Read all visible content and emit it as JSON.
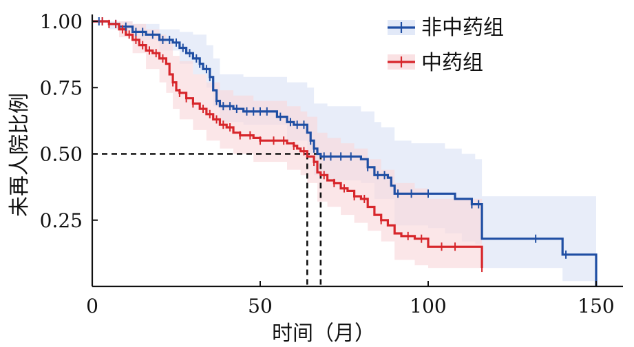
{
  "chart_data": {
    "type": "line",
    "title": "",
    "xlabel": "时间（月）",
    "ylabel": "未再人院比例",
    "xlim": [
      0,
      155
    ],
    "ylim": [
      0,
      1.03
    ],
    "x_ticks": [
      0,
      50,
      100,
      150
    ],
    "y_ticks": [
      0.25,
      0.5,
      0.75,
      1.0
    ],
    "x_tick_labels": [
      "0",
      "50",
      "100",
      "150"
    ],
    "y_tick_labels": [
      "0.25",
      "0.50",
      "0.75",
      "1.00"
    ],
    "grid": false,
    "legend_position": "top-right",
    "median_reference": {
      "y": 0.5,
      "x_values": [
        64,
        68
      ]
    },
    "series": [
      {
        "name": "非中药组",
        "color": "#1f4ea3",
        "ci_color": "#dbe3f6",
        "steps": [
          [
            0,
            1.0
          ],
          [
            5,
            0.99
          ],
          [
            8,
            0.98
          ],
          [
            12,
            0.96
          ],
          [
            16,
            0.95
          ],
          [
            20,
            0.93
          ],
          [
            24,
            0.92
          ],
          [
            26,
            0.9
          ],
          [
            28,
            0.88
          ],
          [
            30,
            0.86
          ],
          [
            32,
            0.84
          ],
          [
            33,
            0.82
          ],
          [
            35,
            0.79
          ],
          [
            36,
            0.74
          ],
          [
            37,
            0.7
          ],
          [
            38,
            0.68
          ],
          [
            42,
            0.67
          ],
          [
            45,
            0.66
          ],
          [
            55,
            0.64
          ],
          [
            58,
            0.62
          ],
          [
            60,
            0.61
          ],
          [
            64,
            0.58
          ],
          [
            65,
            0.55
          ],
          [
            66,
            0.52
          ],
          [
            67,
            0.5
          ],
          [
            68,
            0.49
          ],
          [
            80,
            0.48
          ],
          [
            82,
            0.45
          ],
          [
            84,
            0.42
          ],
          [
            88,
            0.41
          ],
          [
            89,
            0.38
          ],
          [
            90,
            0.35
          ],
          [
            108,
            0.33
          ],
          [
            113,
            0.31
          ],
          [
            116,
            0.18
          ],
          [
            140,
            0.12
          ],
          [
            150,
            0.0
          ]
        ],
        "ci_upper": [
          [
            0,
            1.0
          ],
          [
            5,
            1.0
          ],
          [
            12,
            0.99
          ],
          [
            20,
            0.97
          ],
          [
            26,
            0.96
          ],
          [
            30,
            0.95
          ],
          [
            34,
            0.91
          ],
          [
            36,
            0.86
          ],
          [
            38,
            0.8
          ],
          [
            45,
            0.79
          ],
          [
            58,
            0.77
          ],
          [
            64,
            0.75
          ],
          [
            66,
            0.69
          ],
          [
            70,
            0.68
          ],
          [
            80,
            0.66
          ],
          [
            84,
            0.62
          ],
          [
            86,
            0.6
          ],
          [
            90,
            0.55
          ],
          [
            95,
            0.54
          ],
          [
            105,
            0.52
          ],
          [
            110,
            0.5
          ],
          [
            114,
            0.48
          ],
          [
            116,
            0.34
          ],
          [
            140,
            0.34
          ],
          [
            150,
            0.34
          ]
        ],
        "ci_lower": [
          [
            0,
            1.0
          ],
          [
            5,
            0.97
          ],
          [
            12,
            0.93
          ],
          [
            20,
            0.89
          ],
          [
            26,
            0.84
          ],
          [
            30,
            0.8
          ],
          [
            34,
            0.75
          ],
          [
            36,
            0.68
          ],
          [
            38,
            0.62
          ],
          [
            45,
            0.61
          ],
          [
            58,
            0.55
          ],
          [
            64,
            0.5
          ],
          [
            66,
            0.42
          ],
          [
            70,
            0.4
          ],
          [
            80,
            0.39
          ],
          [
            84,
            0.33
          ],
          [
            90,
            0.23
          ],
          [
            100,
            0.22
          ],
          [
            105,
            0.2
          ],
          [
            110,
            0.17
          ],
          [
            114,
            0.16
          ],
          [
            116,
            0.07
          ],
          [
            140,
            0.02
          ],
          [
            150,
            0.0
          ]
        ],
        "censor_x": [
          2,
          3,
          7,
          10,
          13,
          15,
          18,
          21,
          23,
          25,
          27,
          29,
          31,
          32,
          34,
          35,
          37,
          39,
          41,
          43,
          46,
          48,
          50,
          52,
          56,
          59,
          61,
          63,
          65,
          66,
          69,
          71,
          74,
          77,
          82,
          85,
          87,
          91,
          95,
          100,
          113,
          115,
          132,
          141
        ]
      },
      {
        "name": "中药组",
        "color": "#d7262b",
        "ci_color": "#f9d9dc",
        "steps": [
          [
            0,
            1.0
          ],
          [
            5,
            0.99
          ],
          [
            8,
            0.97
          ],
          [
            10,
            0.95
          ],
          [
            12,
            0.93
          ],
          [
            14,
            0.91
          ],
          [
            16,
            0.89
          ],
          [
            18,
            0.88
          ],
          [
            20,
            0.86
          ],
          [
            22,
            0.84
          ],
          [
            23,
            0.8
          ],
          [
            24,
            0.77
          ],
          [
            25,
            0.74
          ],
          [
            26,
            0.73
          ],
          [
            28,
            0.71
          ],
          [
            30,
            0.69
          ],
          [
            32,
            0.67
          ],
          [
            34,
            0.65
          ],
          [
            36,
            0.63
          ],
          [
            38,
            0.61
          ],
          [
            40,
            0.6
          ],
          [
            42,
            0.58
          ],
          [
            44,
            0.57
          ],
          [
            48,
            0.56
          ],
          [
            50,
            0.55
          ],
          [
            58,
            0.54
          ],
          [
            60,
            0.53
          ],
          [
            61,
            0.52
          ],
          [
            62,
            0.51
          ],
          [
            64,
            0.49
          ],
          [
            66,
            0.47
          ],
          [
            67,
            0.43
          ],
          [
            68,
            0.42
          ],
          [
            70,
            0.4
          ],
          [
            72,
            0.39
          ],
          [
            74,
            0.37
          ],
          [
            76,
            0.36
          ],
          [
            78,
            0.34
          ],
          [
            80,
            0.33
          ],
          [
            82,
            0.3
          ],
          [
            84,
            0.27
          ],
          [
            86,
            0.25
          ],
          [
            88,
            0.23
          ],
          [
            90,
            0.2
          ],
          [
            92,
            0.19
          ],
          [
            96,
            0.18
          ],
          [
            100,
            0.15
          ],
          [
            116,
            0.07
          ]
        ],
        "ci_upper": [
          [
            0,
            1.0
          ],
          [
            8,
            1.0
          ],
          [
            12,
            0.99
          ],
          [
            16,
            0.97
          ],
          [
            20,
            0.95
          ],
          [
            22,
            0.92
          ],
          [
            24,
            0.87
          ],
          [
            26,
            0.85
          ],
          [
            30,
            0.8
          ],
          [
            34,
            0.77
          ],
          [
            38,
            0.74
          ],
          [
            42,
            0.72
          ],
          [
            48,
            0.7
          ],
          [
            58,
            0.68
          ],
          [
            62,
            0.66
          ],
          [
            64,
            0.64
          ],
          [
            67,
            0.58
          ],
          [
            70,
            0.56
          ],
          [
            74,
            0.54
          ],
          [
            78,
            0.52
          ],
          [
            82,
            0.48
          ],
          [
            86,
            0.44
          ],
          [
            90,
            0.39
          ],
          [
            96,
            0.37
          ],
          [
            100,
            0.33
          ],
          [
            116,
            0.26
          ]
        ],
        "ci_lower": [
          [
            0,
            1.0
          ],
          [
            8,
            0.94
          ],
          [
            12,
            0.88
          ],
          [
            16,
            0.82
          ],
          [
            20,
            0.77
          ],
          [
            22,
            0.73
          ],
          [
            24,
            0.67
          ],
          [
            26,
            0.63
          ],
          [
            30,
            0.59
          ],
          [
            34,
            0.55
          ],
          [
            38,
            0.52
          ],
          [
            42,
            0.5
          ],
          [
            48,
            0.47
          ],
          [
            58,
            0.44
          ],
          [
            62,
            0.42
          ],
          [
            64,
            0.39
          ],
          [
            67,
            0.32
          ],
          [
            70,
            0.3
          ],
          [
            74,
            0.27
          ],
          [
            78,
            0.24
          ],
          [
            82,
            0.21
          ],
          [
            86,
            0.17
          ],
          [
            90,
            0.1
          ],
          [
            96,
            0.08
          ],
          [
            100,
            0.07
          ],
          [
            116,
            0.03
          ]
        ],
        "censor_x": [
          3,
          5,
          7,
          9,
          11,
          13,
          15,
          17,
          19,
          21,
          24,
          26,
          28,
          30,
          33,
          35,
          37,
          39,
          41,
          44,
          47,
          50,
          54,
          57,
          60,
          63,
          66,
          69,
          72,
          75,
          78,
          81,
          86,
          94,
          98,
          104,
          108,
          116
        ]
      }
    ]
  }
}
